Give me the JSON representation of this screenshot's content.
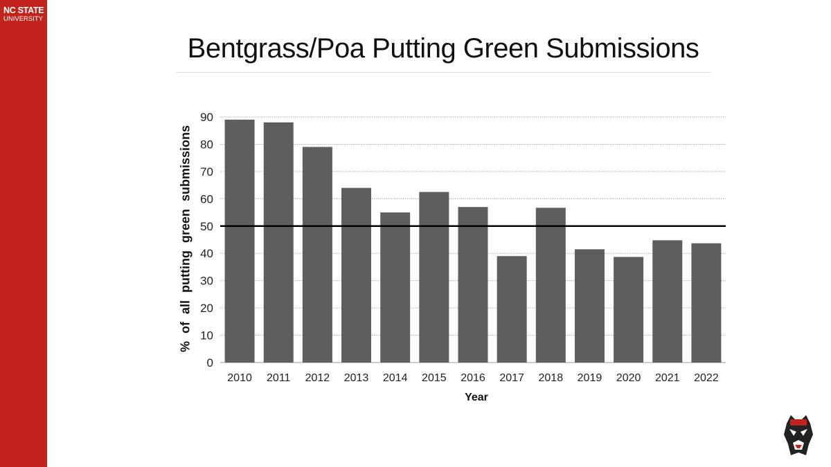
{
  "branding": {
    "line1": "NC STATE",
    "line2": "UNIVERSITY",
    "sidebar_color": "#c0241c"
  },
  "chart_data": {
    "type": "bar",
    "title": "Bentgrass/Poa Putting Green Submissions",
    "xlabel": "Year",
    "ylabel": "% of all putting green submissions",
    "categories": [
      "2010",
      "2011",
      "2012",
      "2013",
      "2014",
      "2015",
      "2016",
      "2017",
      "2018",
      "2019",
      "2020",
      "2021",
      "2022"
    ],
    "values": [
      89,
      88,
      79,
      64,
      55,
      62.5,
      57,
      39,
      56.7,
      41.5,
      38.7,
      44.8,
      43.7
    ],
    "ylim": [
      0,
      90
    ],
    "yticks": [
      "0",
      "10",
      "20",
      "30",
      "40",
      "50",
      "60",
      "70",
      "80",
      "90"
    ],
    "grid": true,
    "reference_line": 50,
    "bar_color": "#5e5e5e"
  }
}
